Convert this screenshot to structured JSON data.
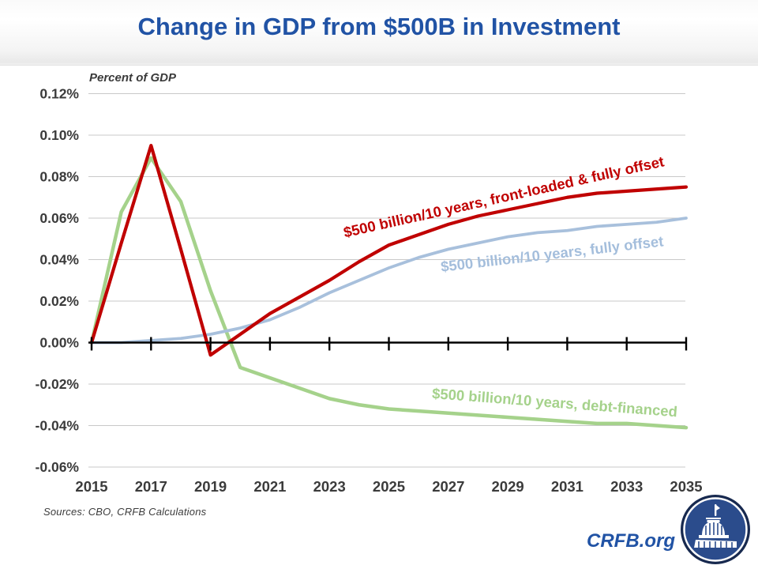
{
  "header": {
    "title": "Change in GDP from $500B in Investment"
  },
  "chart_data": {
    "type": "line",
    "title": "Change in GDP from $500B in Investment",
    "ylabel": "Percent of GDP",
    "xlim": [
      2015,
      2035
    ],
    "ylim": [
      -0.06,
      0.12
    ],
    "grid": true,
    "legend_position": "inline-rotated-labels",
    "x": [
      2015,
      2016,
      2017,
      2018,
      2019,
      2020,
      2021,
      2022,
      2023,
      2024,
      2025,
      2026,
      2027,
      2028,
      2029,
      2030,
      2031,
      2032,
      2033,
      2034,
      2035
    ],
    "x_ticks": [
      2015,
      2017,
      2019,
      2021,
      2023,
      2025,
      2027,
      2029,
      2031,
      2033,
      2035
    ],
    "x_tick_labels": [
      "2015",
      "2017",
      "2019",
      "2021",
      "2023",
      "2025",
      "2027",
      "2029",
      "2031",
      "2033",
      "2035"
    ],
    "y_ticks": [
      0.12,
      0.1,
      0.08,
      0.06,
      0.04,
      0.02,
      0.0,
      -0.02,
      -0.04,
      -0.06
    ],
    "y_tick_labels": [
      "0.12%",
      "0.10%",
      "0.08%",
      "0.06%",
      "0.04%",
      "0.02%",
      "0.00%",
      "-0.02%",
      "-0.04%",
      "-0.06%"
    ],
    "series": [
      {
        "name": "$500 billion/10 years, front-loaded & fully offset",
        "color": "#C00000",
        "values": [
          0.0,
          0.048,
          0.095,
          0.045,
          -0.006,
          0.004,
          0.014,
          0.022,
          0.03,
          0.039,
          0.047,
          0.052,
          0.057,
          0.061,
          0.064,
          0.067,
          0.07,
          0.072,
          0.073,
          0.074,
          0.075
        ]
      },
      {
        "name": "$500 billion/10 years, fully offset",
        "color": "#A8C0DC",
        "values": [
          0.0,
          0.0,
          0.001,
          0.002,
          0.004,
          0.007,
          0.011,
          0.017,
          0.024,
          0.03,
          0.036,
          0.041,
          0.045,
          0.048,
          0.051,
          0.053,
          0.054,
          0.056,
          0.057,
          0.058,
          0.06
        ]
      },
      {
        "name": "$500 billion/10 years, debt-financed",
        "color": "#A5D28B",
        "values": [
          0.0,
          0.063,
          0.089,
          0.068,
          0.025,
          -0.012,
          -0.017,
          -0.022,
          -0.027,
          -0.03,
          -0.032,
          -0.033,
          -0.034,
          -0.035,
          -0.036,
          -0.037,
          -0.038,
          -0.039,
          -0.039,
          -0.04,
          -0.041
        ]
      }
    ]
  },
  "footer": {
    "sources": "Sources:  CBO, CRFB Calculations",
    "site": "CRFB.org",
    "logo": "capitol-dome-logo"
  },
  "colors": {
    "title_blue": "#2153A5",
    "axis_text": "#3b3b3b",
    "gridline": "#c9c9c9",
    "zero_axis": "#000000",
    "logo_navy": "#17294F",
    "logo_blue": "#2B4C8C"
  }
}
